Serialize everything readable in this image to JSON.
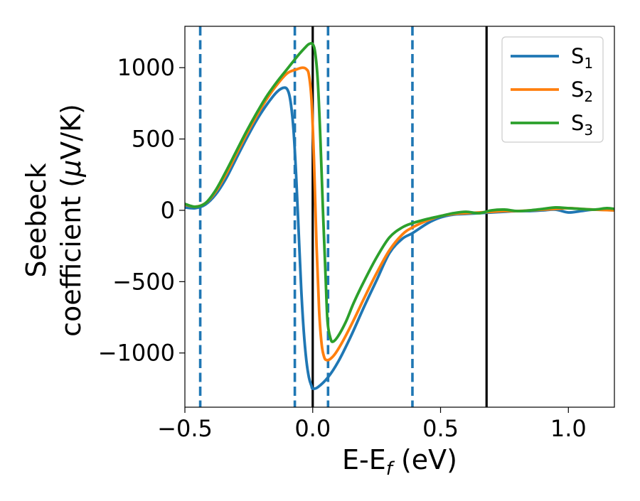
{
  "chart_data": {
    "type": "line",
    "title": "",
    "xlabel": {
      "main": "E-E",
      "sub": "f",
      "tail": " (eV)"
    },
    "ylabel": {
      "line1": "Seebeck",
      "line2_main": "coefficient  (",
      "mu": "μ",
      "line2_tail": "V/K)"
    },
    "xlim": [
      -0.5,
      1.18
    ],
    "ylim": [
      -1380,
      1290
    ],
    "x_ticks": [
      -0.5,
      0.0,
      0.5,
      1.0
    ],
    "x_tick_labels": [
      "−0.5",
      "0.0",
      "0.5",
      "1.0"
    ],
    "y_ticks": [
      -1000,
      -500,
      0,
      500,
      1000
    ],
    "y_tick_labels": [
      "−1000",
      "−500",
      "0",
      "500",
      "1000"
    ],
    "grid": false,
    "legend_position": "top-right",
    "vertical_lines": [
      {
        "x": -0.44,
        "style": "dashed",
        "color": "#1f77b4"
      },
      {
        "x": -0.07,
        "style": "dashed",
        "color": "#1f77b4"
      },
      {
        "x": 0.06,
        "style": "dashed",
        "color": "#1f77b4"
      },
      {
        "x": 0.39,
        "style": "dashed",
        "color": "#1f77b4"
      },
      {
        "x": 0.0,
        "style": "solid",
        "color": "#000000"
      },
      {
        "x": 0.68,
        "style": "solid",
        "color": "#000000"
      }
    ],
    "series": [
      {
        "name": "S",
        "sub": "1",
        "color": "#1f77b4",
        "x": [
          -0.5,
          -0.46,
          -0.42,
          -0.38,
          -0.34,
          -0.3,
          -0.26,
          -0.22,
          -0.18,
          -0.14,
          -0.11,
          -0.095,
          -0.085,
          -0.075,
          -0.065,
          -0.055,
          -0.045,
          -0.035,
          -0.025,
          -0.015,
          -0.005,
          0.0,
          0.02,
          0.06,
          0.1,
          0.15,
          0.2,
          0.25,
          0.3,
          0.35,
          0.39,
          0.45,
          0.5,
          0.55,
          0.6,
          0.65,
          0.7,
          0.75,
          0.8,
          0.85,
          0.9,
          0.95,
          1.0,
          1.05,
          1.1,
          1.18
        ],
        "values": [
          20,
          15,
          40,
          110,
          220,
          360,
          500,
          630,
          740,
          830,
          860,
          830,
          740,
          560,
          250,
          -150,
          -550,
          -850,
          -1050,
          -1170,
          -1230,
          -1250,
          -1240,
          -1170,
          -1060,
          -880,
          -680,
          -490,
          -300,
          -200,
          -160,
          -90,
          -50,
          -30,
          -25,
          -20,
          -15,
          -10,
          -5,
          -5,
          0,
          5,
          -15,
          -5,
          5,
          0
        ]
      },
      {
        "name": "S",
        "sub": "2",
        "color": "#ff7f0e",
        "x": [
          -0.5,
          -0.46,
          -0.42,
          -0.38,
          -0.34,
          -0.3,
          -0.26,
          -0.22,
          -0.18,
          -0.14,
          -0.1,
          -0.06,
          -0.04,
          -0.025,
          -0.015,
          -0.005,
          0.005,
          0.015,
          0.025,
          0.035,
          0.045,
          0.055,
          0.07,
          0.09,
          0.12,
          0.16,
          0.2,
          0.25,
          0.3,
          0.35,
          0.39,
          0.45,
          0.5,
          0.55,
          0.6,
          0.65,
          0.7,
          0.75,
          0.8,
          0.85,
          0.9,
          0.95,
          1.0,
          1.05,
          1.1,
          1.18
        ],
        "values": [
          40,
          25,
          50,
          130,
          250,
          390,
          530,
          660,
          780,
          880,
          960,
          990,
          1000,
          990,
          950,
          780,
          350,
          -250,
          -700,
          -940,
          -1030,
          -1050,
          -1040,
          -1000,
          -910,
          -770,
          -620,
          -440,
          -280,
          -170,
          -120,
          -70,
          -40,
          -25,
          -20,
          -15,
          -10,
          -5,
          -5,
          0,
          5,
          10,
          15,
          10,
          5,
          0
        ]
      },
      {
        "name": "S",
        "sub": "3",
        "color": "#2ca02c",
        "x": [
          -0.5,
          -0.46,
          -0.42,
          -0.38,
          -0.34,
          -0.3,
          -0.26,
          -0.22,
          -0.18,
          -0.14,
          -0.1,
          -0.06,
          -0.03,
          -0.015,
          0.0,
          0.01,
          0.02,
          0.03,
          0.04,
          0.05,
          0.058,
          0.07,
          0.08,
          0.1,
          0.13,
          0.16,
          0.2,
          0.25,
          0.3,
          0.35,
          0.39,
          0.45,
          0.5,
          0.55,
          0.6,
          0.65,
          0.7,
          0.75,
          0.8,
          0.85,
          0.9,
          0.95,
          1.0,
          1.05,
          1.1,
          1.15,
          1.18
        ],
        "values": [
          45,
          25,
          50,
          140,
          270,
          410,
          550,
          680,
          800,
          900,
          990,
          1080,
          1140,
          1165,
          1165,
          1100,
          900,
          500,
          0,
          -450,
          -780,
          -900,
          -920,
          -880,
          -780,
          -650,
          -500,
          -330,
          -190,
          -120,
          -90,
          -60,
          -40,
          -20,
          -10,
          -20,
          0,
          5,
          -5,
          0,
          10,
          20,
          15,
          10,
          5,
          15,
          10
        ]
      }
    ]
  }
}
